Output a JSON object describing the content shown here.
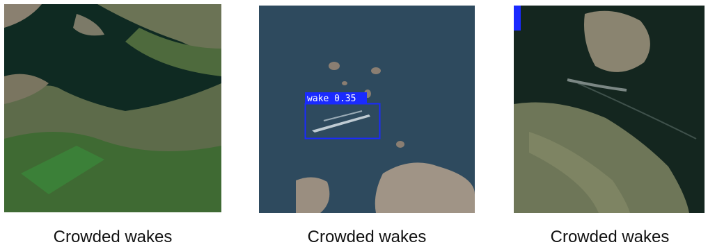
{
  "panels": [
    {
      "caption": "Crowded wakes"
    },
    {
      "caption": "Crowded wakes",
      "detections": [
        {
          "label": "wake 0.35"
        }
      ]
    },
    {
      "caption": "Crowded wakes"
    }
  ]
}
